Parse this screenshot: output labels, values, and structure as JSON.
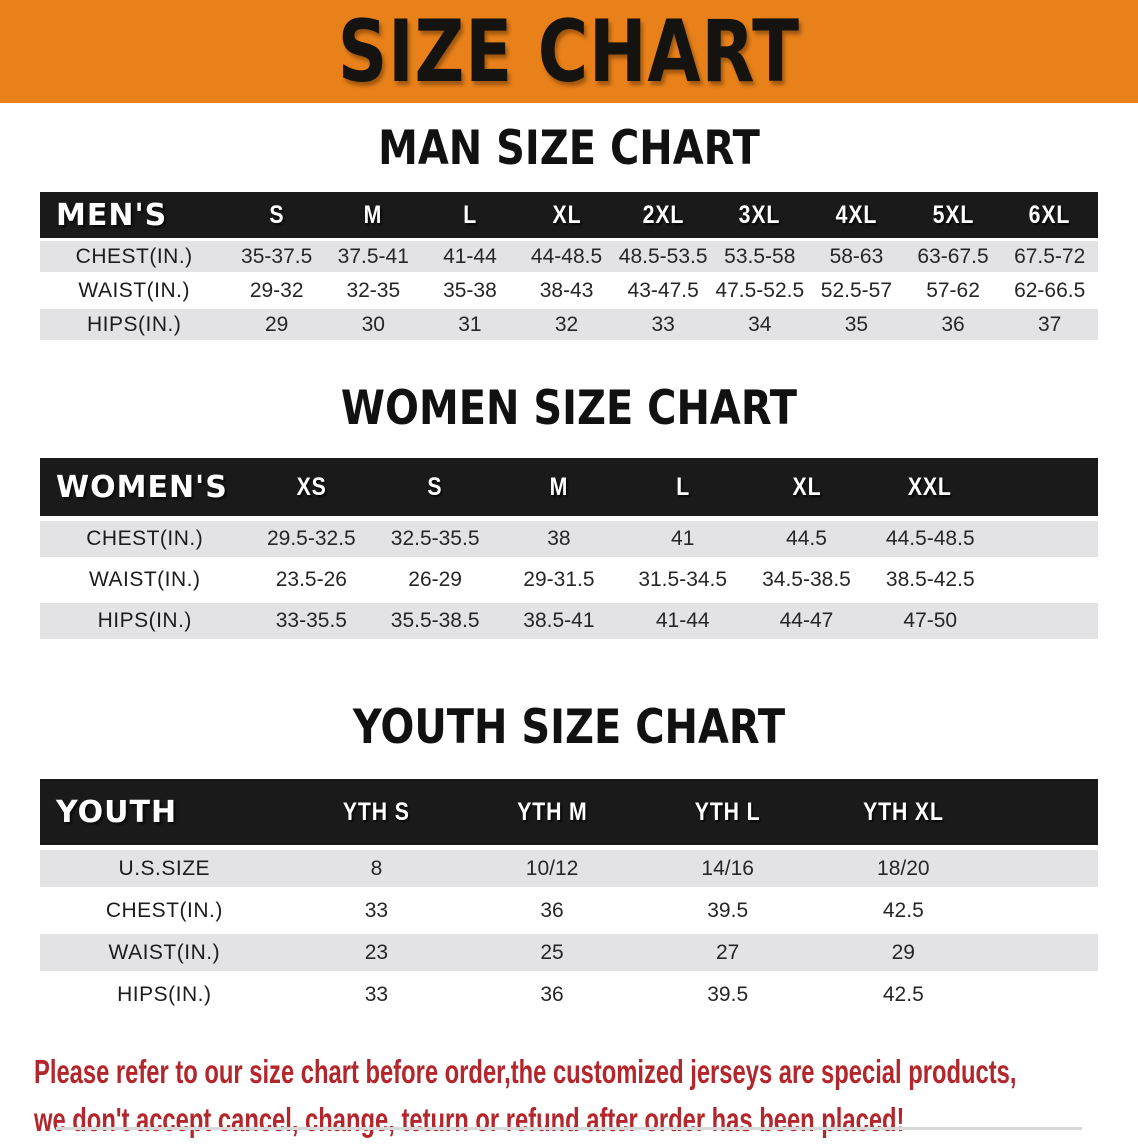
{
  "banner": {
    "title": "SIZE CHART"
  },
  "colors": {
    "banner_bg": "#e8811a",
    "table_header_bg": "#1a1a1a",
    "row_shade": "#e3e3e6",
    "footer_text": "#b2262c"
  },
  "sections": [
    {
      "title": "MAN SIZE CHART",
      "header_label": "MEN'S",
      "columns": [
        "S",
        "M",
        "L",
        "XL",
        "2XL",
        "3XL",
        "4XL",
        "5XL",
        "6XL"
      ],
      "rows": [
        {
          "label": "CHEST(IN.)",
          "values": [
            "35-37.5",
            "37.5-41",
            "41-44",
            "44-48.5",
            "48.5-53.5",
            "53.5-58",
            "58-63",
            "63-67.5",
            "67.5-72"
          ]
        },
        {
          "label": "WAIST(IN.)",
          "values": [
            "29-32",
            "32-35",
            "35-38",
            "38-43",
            "43-47.5",
            "47.5-52.5",
            "52.5-57",
            "57-62",
            "62-66.5"
          ]
        },
        {
          "label": "HIPS(IN.)",
          "values": [
            "29",
            "30",
            "31",
            "32",
            "33",
            "34",
            "35",
            "36",
            "37"
          ]
        }
      ]
    },
    {
      "title": "WOMEN SIZE CHART",
      "header_label": "WOMEN'S",
      "columns": [
        "XS",
        "S",
        "M",
        "L",
        "XL",
        "XXL"
      ],
      "rows": [
        {
          "label": "CHEST(IN.)",
          "values": [
            "29.5-32.5",
            "32.5-35.5",
            "38",
            "41",
            "44.5",
            "44.5-48.5"
          ]
        },
        {
          "label": "WAIST(IN.)",
          "values": [
            "23.5-26",
            "26-29",
            "29-31.5",
            "31.5-34.5",
            "34.5-38.5",
            "38.5-42.5"
          ]
        },
        {
          "label": "HIPS(IN.)",
          "values": [
            "33-35.5",
            "35.5-38.5",
            "38.5-41",
            "41-44",
            "44-47",
            "47-50"
          ]
        }
      ]
    },
    {
      "title": "YOUTH SIZE CHART",
      "header_label": "YOUTH",
      "columns": [
        "YTH S",
        "YTH M",
        "YTH L",
        "YTH XL"
      ],
      "rows": [
        {
          "label": "U.S.SIZE",
          "values": [
            "8",
            "10/12",
            "14/16",
            "18/20"
          ]
        },
        {
          "label": "CHEST(IN.)",
          "values": [
            "33",
            "36",
            "39.5",
            "42.5"
          ]
        },
        {
          "label": "WAIST(IN.)",
          "values": [
            "23",
            "25",
            "27",
            "29"
          ]
        },
        {
          "label": "HIPS(IN.)",
          "values": [
            "33",
            "36",
            "39.5",
            "42.5"
          ]
        }
      ]
    }
  ],
  "footer": {
    "line1": "Please refer to our size chart before order,the customized jerseys are special products,",
    "line2": "we don't accept cancel, change, teturn or refund after order has been placed!"
  }
}
